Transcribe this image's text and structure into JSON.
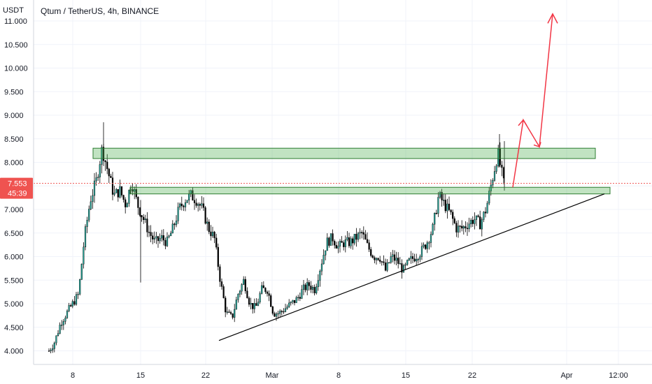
{
  "chart_data": {
    "type": "candlestick",
    "title": "Qtum / TetherUS, 4h, BINANCE",
    "currency": "USDT",
    "ylim": [
      3.75,
      11.2
    ],
    "y_ticks": [
      "4.000",
      "4.500",
      "5.000",
      "5.500",
      "6.000",
      "6.500",
      "7.000",
      "7.500",
      "8.000",
      "8.500",
      "9.000",
      "9.500",
      "10.000",
      "10.500",
      "11.000"
    ],
    "x_ticks": [
      "8",
      "15",
      "22",
      "Mar",
      "8",
      "15",
      "22",
      "Apr",
      "12:00"
    ],
    "last_price": "7.553",
    "countdown": "45:39",
    "colors": {
      "up": "#26a69a",
      "down": "#ef5350",
      "candle": "#000000",
      "zone_fill": "#4caf50",
      "zone_stroke": "#2e7d32",
      "projection": "#f23645",
      "trendline": "#000000",
      "price_line": "#ef5350"
    },
    "zones": [
      {
        "name": "upper resistance",
        "y_low": 8.08,
        "y_high": 8.3
      },
      {
        "name": "lower resistance",
        "y_low": 7.33,
        "y_high": 7.47
      }
    ],
    "price_path": [
      4.0,
      4.2,
      4.6,
      4.8,
      5.0,
      5.2,
      6.4,
      7.2,
      7.6,
      8.3,
      7.8,
      7.3,
      7.4,
      7.1,
      7.6,
      7.1,
      6.8,
      6.5,
      6.3,
      6.4,
      6.3,
      6.6,
      7.0,
      7.2,
      7.3,
      7.2,
      7.0,
      6.6,
      6.4,
      5.5,
      4.8,
      4.7,
      5.2,
      5.5,
      5.0,
      4.9,
      5.3,
      5.3,
      4.8,
      4.8,
      4.9,
      5.0,
      5.1,
      5.3,
      5.4,
      5.3,
      5.8,
      6.3,
      6.4,
      6.2,
      6.3,
      6.3,
      6.4,
      6.5,
      6.2,
      6.0,
      6.0,
      5.7,
      6.0,
      5.9,
      5.7,
      5.9,
      6.0,
      6.1,
      6.3,
      6.6,
      7.3,
      7.1,
      6.9,
      6.6,
      6.6,
      6.7,
      6.8,
      6.7,
      7.0,
      7.6,
      8.2,
      7.553
    ]
  }
}
